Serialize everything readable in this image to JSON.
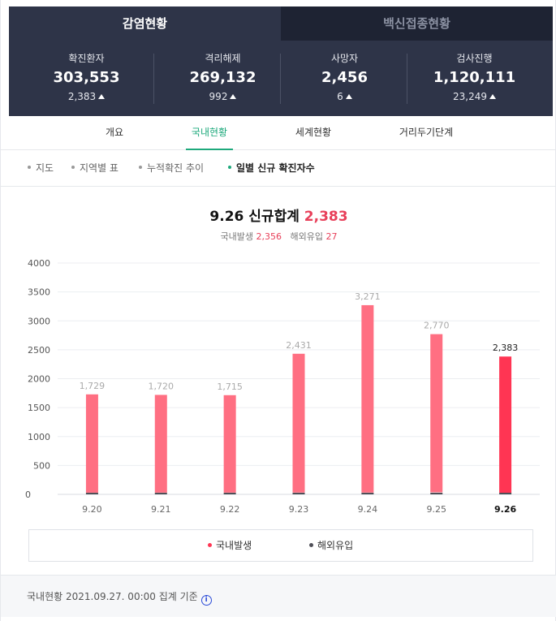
{
  "header": {
    "tabs": [
      {
        "label": "감염현황",
        "active": true
      },
      {
        "label": "백신접종현황",
        "active": false
      }
    ],
    "stats": [
      {
        "label": "확진환자",
        "value": "303,553",
        "change": "2,383"
      },
      {
        "label": "격리해제",
        "value": "269,132",
        "change": "992"
      },
      {
        "label": "사망자",
        "value": "2,456",
        "change": "6"
      },
      {
        "label": "검사진행",
        "value": "1,120,111",
        "change": "23,249"
      }
    ]
  },
  "subnav": [
    "개요",
    "국내현황",
    "세계현황",
    "거리두기단계"
  ],
  "subnav_active": 1,
  "filters": [
    "지도",
    "지역별 표",
    "누적확진 추이",
    "일별 신규 확진자수"
  ],
  "filters_active": 3,
  "chart_header": {
    "date": "9.26",
    "label": "신규합계",
    "total": "2,383",
    "domestic_label": "국내발생",
    "domestic_value": "2,356",
    "overseas_label": "해외유입",
    "overseas_value": "27"
  },
  "legend": {
    "domestic": "국내발생",
    "overseas": "해외유입"
  },
  "footer": {
    "text": "국내현황 2021.09.27. 00:00 집계 기준"
  },
  "colors": {
    "domestic": "#ff6f82",
    "domestic_highlight": "#ff3553",
    "overseas": "#4f4f57",
    "accent_green": "#1ea97c",
    "header_bg": "#2e3448"
  },
  "chart_data": {
    "type": "bar",
    "stacked": true,
    "categories": [
      "9.20",
      "9.21",
      "9.22",
      "9.23",
      "9.24",
      "9.25",
      "9.26"
    ],
    "series": [
      {
        "name": "국내발생",
        "values": [
          1700,
          1690,
          1685,
          2400,
          3240,
          2735,
          2356
        ]
      },
      {
        "name": "해외유입",
        "values": [
          29,
          30,
          30,
          31,
          31,
          35,
          27
        ]
      }
    ],
    "totals": [
      1729,
      1720,
      1715,
      2431,
      3271,
      2770,
      2383
    ],
    "total_labels": [
      "1,729",
      "1,720",
      "1,715",
      "2,431",
      "3,271",
      "2,770",
      "2,383"
    ],
    "highlight_index": 6,
    "yticks": [
      0,
      500,
      1000,
      1500,
      2000,
      2500,
      3000,
      3500,
      4000
    ],
    "ylim": [
      0,
      4000
    ],
    "grid": true,
    "legend_position": "bottom"
  }
}
